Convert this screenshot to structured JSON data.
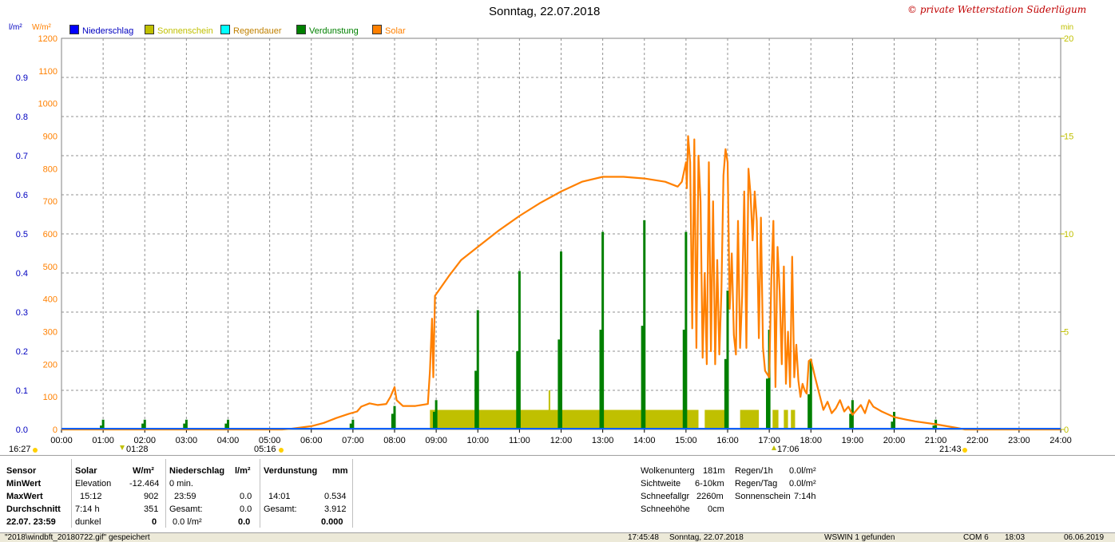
{
  "header": {
    "title": "Sonntag, 22.07.2018",
    "copyright": "© private Wetterstation Süderlügum",
    "left_unit_1": "l/m²",
    "left_unit_2": "W/m²",
    "right_unit": "min"
  },
  "legend": [
    {
      "label": "Niederschlag",
      "color": "#0000ff",
      "text_color": "#0000c0"
    },
    {
      "label": "Sonnenschein",
      "color": "#c0c000",
      "text_color": "#c0c000"
    },
    {
      "label": "Regendauer",
      "color": "#00ffff",
      "text_color": "#c08000"
    },
    {
      "label": "Verdunstung",
      "color": "#008000",
      "text_color": "#008000"
    },
    {
      "label": "Solar",
      "color": "#ff8000",
      "text_color": "#ff8000"
    }
  ],
  "markers": {
    "left_time": "16:27",
    "moon_time": "01:28",
    "sunrise_time": "05:16",
    "moonset_time": "17:06",
    "sunset_time": "21:43"
  },
  "chart_data": {
    "type": "line",
    "title": "Sonntag, 22.07.2018",
    "x_ticks": [
      "00:00",
      "01:00",
      "02:00",
      "03:00",
      "04:00",
      "05:00",
      "06:00",
      "07:00",
      "08:00",
      "09:00",
      "10:00",
      "11:00",
      "12:00",
      "13:00",
      "14:00",
      "15:00",
      "16:00",
      "17:00",
      "18:00",
      "19:00",
      "20:00",
      "21:00",
      "22:00",
      "23:00",
      "24:00"
    ],
    "xlim": [
      0,
      24
    ],
    "y_solar_ticks": [
      "0",
      "100",
      "200",
      "300",
      "400",
      "500",
      "600",
      "700",
      "800",
      "900",
      "1000",
      "1100",
      "1200"
    ],
    "y_solar_range": [
      0,
      1200
    ],
    "y_precip_ticks": [
      "0.0",
      "0.1",
      "0.2",
      "0.3",
      "0.4",
      "0.5",
      "0.6",
      "0.7",
      "0.8",
      "0.9"
    ],
    "y_precip_range": [
      0,
      1.0
    ],
    "y_min_ticks": [
      "0",
      "5",
      "10",
      "15",
      "20"
    ],
    "y_min_range": [
      0,
      20
    ],
    "grid": true,
    "colors": {
      "solar": "#ff8000",
      "verdunstung": "#008000",
      "sonnenschein": "#c0c000",
      "niederschlag": "#0060ff"
    },
    "series": [
      {
        "name": "Solar",
        "unit": "W/m²",
        "points": [
          [
            0,
            0
          ],
          [
            5.3,
            0
          ],
          [
            5.5,
            2
          ],
          [
            6.0,
            10
          ],
          [
            6.3,
            20
          ],
          [
            6.6,
            35
          ],
          [
            6.9,
            48
          ],
          [
            7.1,
            55
          ],
          [
            7.2,
            70
          ],
          [
            7.4,
            80
          ],
          [
            7.6,
            75
          ],
          [
            7.8,
            78
          ],
          [
            7.9,
            100
          ],
          [
            8.0,
            130
          ],
          [
            8.05,
            90
          ],
          [
            8.2,
            72
          ],
          [
            8.5,
            72
          ],
          [
            8.8,
            78
          ],
          [
            8.85,
            180
          ],
          [
            8.9,
            340
          ],
          [
            8.93,
            160
          ],
          [
            8.97,
            410
          ],
          [
            9.3,
            470
          ],
          [
            9.6,
            520
          ],
          [
            10.0,
            560
          ],
          [
            10.5,
            610
          ],
          [
            11.0,
            655
          ],
          [
            11.5,
            695
          ],
          [
            12.0,
            730
          ],
          [
            12.5,
            760
          ],
          [
            13.0,
            775
          ],
          [
            13.5,
            775
          ],
          [
            14.0,
            770
          ],
          [
            14.5,
            760
          ],
          [
            14.8,
            745
          ],
          [
            14.9,
            760
          ],
          [
            15.0,
            820
          ],
          [
            15.02,
            740
          ],
          [
            15.05,
            900
          ],
          [
            15.1,
            820
          ],
          [
            15.15,
            310
          ],
          [
            15.2,
            890
          ],
          [
            15.25,
            250
          ],
          [
            15.3,
            840
          ],
          [
            15.35,
            700
          ],
          [
            15.4,
            220
          ],
          [
            15.45,
            480
          ],
          [
            15.5,
            200
          ],
          [
            15.55,
            820
          ],
          [
            15.6,
            240
          ],
          [
            15.65,
            700
          ],
          [
            15.7,
            200
          ],
          [
            15.75,
            520
          ],
          [
            15.8,
            230
          ],
          [
            15.85,
            420
          ],
          [
            15.9,
            780
          ],
          [
            15.95,
            860
          ],
          [
            16.0,
            820
          ],
          [
            16.05,
            370
          ],
          [
            16.1,
            540
          ],
          [
            16.15,
            290
          ],
          [
            16.2,
            230
          ],
          [
            16.25,
            640
          ],
          [
            16.3,
            250
          ],
          [
            16.35,
            410
          ],
          [
            16.4,
            730
          ],
          [
            16.45,
            250
          ],
          [
            16.5,
            800
          ],
          [
            16.55,
            720
          ],
          [
            16.6,
            580
          ],
          [
            16.65,
            730
          ],
          [
            16.7,
            640
          ],
          [
            16.75,
            280
          ],
          [
            16.8,
            650
          ],
          [
            16.85,
            250
          ],
          [
            16.9,
            180
          ],
          [
            17.0,
            160
          ],
          [
            17.05,
            460
          ],
          [
            17.1,
            640
          ],
          [
            17.15,
            130
          ],
          [
            17.2,
            560
          ],
          [
            17.25,
            420
          ],
          [
            17.3,
            200
          ],
          [
            17.35,
            500
          ],
          [
            17.4,
            140
          ],
          [
            17.45,
            300
          ],
          [
            17.5,
            130
          ],
          [
            17.55,
            530
          ],
          [
            17.6,
            160
          ],
          [
            17.65,
            260
          ],
          [
            17.7,
            150
          ],
          [
            17.75,
            100
          ],
          [
            17.8,
            140
          ],
          [
            17.85,
            120
          ],
          [
            17.9,
            110
          ],
          [
            17.95,
            210
          ],
          [
            18.0,
            215
          ],
          [
            18.1,
            160
          ],
          [
            18.2,
            110
          ],
          [
            18.3,
            60
          ],
          [
            18.4,
            85
          ],
          [
            18.5,
            50
          ],
          [
            18.6,
            65
          ],
          [
            18.7,
            90
          ],
          [
            18.8,
            55
          ],
          [
            18.9,
            70
          ],
          [
            19.0,
            45
          ],
          [
            19.2,
            75
          ],
          [
            19.3,
            50
          ],
          [
            19.4,
            90
          ],
          [
            19.5,
            70
          ],
          [
            19.7,
            55
          ],
          [
            20.0,
            38
          ],
          [
            20.3,
            30
          ],
          [
            20.5,
            25
          ],
          [
            21.0,
            16
          ],
          [
            21.5,
            5
          ],
          [
            21.7,
            0
          ],
          [
            24,
            0
          ]
        ]
      },
      {
        "name": "Verdunstung",
        "unit": "l/m²",
        "bars": [
          [
            0.95,
            0.01
          ],
          [
            1.0,
            0.025
          ],
          [
            1.95,
            0.015
          ],
          [
            2.0,
            0.025
          ],
          [
            2.95,
            0.015
          ],
          [
            3.0,
            0.025
          ],
          [
            3.95,
            0.015
          ],
          [
            4.0,
            0.025
          ],
          [
            6.95,
            0.015
          ],
          [
            7.0,
            0.025
          ],
          [
            7.95,
            0.04
          ],
          [
            8.0,
            0.06
          ],
          [
            8.95,
            0.045
          ],
          [
            9.0,
            0.075
          ],
          [
            9.95,
            0.15
          ],
          [
            10.0,
            0.305
          ],
          [
            10.95,
            0.2
          ],
          [
            11.0,
            0.405
          ],
          [
            11.95,
            0.23
          ],
          [
            12.0,
            0.455
          ],
          [
            12.95,
            0.255
          ],
          [
            13.0,
            0.505
          ],
          [
            13.95,
            0.265
          ],
          [
            14.0,
            0.535
          ],
          [
            14.95,
            0.255
          ],
          [
            15.0,
            0.505
          ],
          [
            15.95,
            0.18
          ],
          [
            16.0,
            0.355
          ],
          [
            16.95,
            0.13
          ],
          [
            17.0,
            0.255
          ],
          [
            17.95,
            0.09
          ],
          [
            18.0,
            0.18
          ],
          [
            18.95,
            0.04
          ],
          [
            19.0,
            0.075
          ],
          [
            19.95,
            0.02
          ],
          [
            20.0,
            0.045
          ],
          [
            20.95,
            0.01
          ],
          [
            21.0,
            0.025
          ]
        ]
      },
      {
        "name": "Sonnenschein",
        "unit": "min",
        "segments": [
          [
            8.85,
            15.3
          ],
          [
            15.45,
            15.95
          ],
          [
            16.3,
            16.75
          ],
          [
            17.08,
            17.22
          ],
          [
            17.35,
            17.45
          ],
          [
            17.52,
            17.62
          ]
        ],
        "level": 1,
        "extra_ticks": [
          [
            11.72,
            2
          ]
        ]
      },
      {
        "name": "Niederschlag",
        "unit": "l/m²",
        "values": [
          0.0
        ]
      }
    ]
  },
  "stats": {
    "col1": {
      "header": "Sensor",
      "rows": [
        "MinWert",
        "MaxWert",
        "Durchschnitt",
        "22.07. 23:59"
      ]
    },
    "solar": {
      "header": "Solar",
      "unit": "W/m²",
      "rows": [
        [
          "Elevation",
          "-12.464"
        ],
        [
          "15:12",
          "902"
        ],
        [
          "7:14 h",
          "351"
        ],
        [
          "dunkel",
          "0"
        ]
      ]
    },
    "niederschlag": {
      "header": "Niederschlag",
      "unit": "l/m²",
      "rows": [
        [
          "0 min.",
          ""
        ],
        [
          "23:59",
          "0.0"
        ],
        [
          "Gesamt:",
          "0.0"
        ],
        [
          "0.0 l/m²",
          "0.0"
        ]
      ]
    },
    "verdunstung": {
      "header": "Verdunstung",
      "unit": "mm",
      "rows": [
        [
          "",
          ""
        ],
        [
          "14:01",
          "0.534"
        ],
        [
          "Gesamt:",
          "3.912"
        ],
        [
          "",
          "0.000"
        ]
      ]
    },
    "weather": {
      "rows": [
        [
          "Wolkenunterg",
          "181m"
        ],
        [
          "Sichtweite",
          "6-10km"
        ],
        [
          "Schneefallgr",
          "2260m"
        ],
        [
          "Schneehöhe",
          "0cm"
        ]
      ]
    },
    "rain": {
      "rows": [
        [
          "Regen/1h",
          "0.0l/m²"
        ],
        [
          "Regen/Tag",
          "0.0l/m²"
        ],
        [
          "Sonnenschein",
          "7:14h"
        ]
      ]
    }
  },
  "statusbar": {
    "file": "\"2018\\windbft_20180722.gif\" gespeichert",
    "time": "17:45:48",
    "date": "Sonntag, 22.07.2018",
    "device": "WSWIN 1 gefunden",
    "port": "COM 6",
    "clock": "18:03",
    "today": "06.06.2019"
  }
}
